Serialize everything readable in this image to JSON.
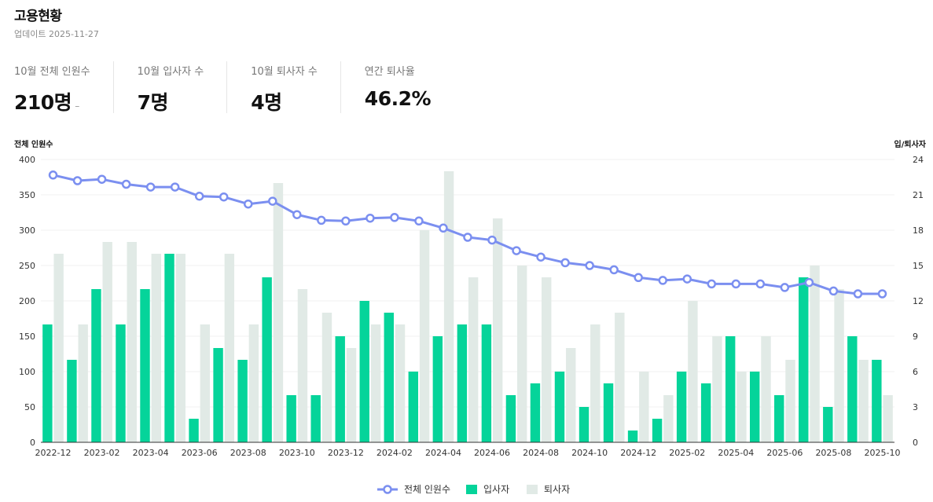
{
  "header": {
    "title": "고용현황",
    "updated": "업데이트 2025-11-27"
  },
  "kpis": [
    {
      "label": "10월 전체 인원수",
      "value": "210명",
      "delta": "–"
    },
    {
      "label": "10월 입사자 수",
      "value": "7명",
      "delta": ""
    },
    {
      "label": "10월 퇴사자 수",
      "value": "4명",
      "delta": ""
    },
    {
      "label": "연간 퇴사율",
      "value": "46.2%",
      "delta": ""
    }
  ],
  "colors": {
    "line": "#7b8ff0",
    "hires": "#05d49a",
    "leavers": "#e1eae6",
    "grid": "#f1f1f1"
  },
  "chart_data": {
    "type": "bar+line",
    "y_left_label": "전체 인원수",
    "y_right_label": "입/퇴사자",
    "y_left_range": [
      0,
      400
    ],
    "y_left_ticks": [
      0,
      50,
      100,
      150,
      200,
      250,
      300,
      350,
      400
    ],
    "y_right_range": [
      0,
      24
    ],
    "y_right_ticks": [
      0,
      3,
      6,
      9,
      12,
      15,
      18,
      21,
      24
    ],
    "categories": [
      "2022-12",
      "2023-01",
      "2023-02",
      "2023-03",
      "2023-04",
      "2023-05",
      "2023-06",
      "2023-07",
      "2023-08",
      "2023-09",
      "2023-10",
      "2023-11",
      "2023-12",
      "2024-01",
      "2024-02",
      "2024-03",
      "2024-04",
      "2024-05",
      "2024-06",
      "2024-07",
      "2024-08",
      "2024-09",
      "2024-10",
      "2024-11",
      "2024-12",
      "2025-01",
      "2025-02",
      "2025-03",
      "2025-04",
      "2025-05",
      "2025-06",
      "2025-07",
      "2025-08",
      "2025-09",
      "2025-10"
    ],
    "x_tick_labels": [
      "2022-12",
      "2023-02",
      "2023-04",
      "2023-06",
      "2023-08",
      "2023-10",
      "2023-12",
      "2024-02",
      "2024-04",
      "2024-06",
      "2024-08",
      "2024-10",
      "2024-12",
      "2025-02",
      "2025-04",
      "2025-06",
      "2025-08",
      "2025-10"
    ],
    "series": [
      {
        "name": "전체 인원수",
        "type": "line",
        "axis": "left",
        "values": [
          378,
          370,
          372,
          365,
          361,
          361,
          348,
          347,
          337,
          341,
          322,
          314,
          313,
          317,
          318,
          313,
          303,
          290,
          286,
          271,
          262,
          254,
          250,
          244,
          233,
          229,
          231,
          224,
          224,
          224,
          219,
          226,
          214,
          210,
          210
        ]
      },
      {
        "name": "입사자",
        "type": "bar",
        "axis": "right",
        "values": [
          10,
          7,
          13,
          10,
          13,
          16,
          2,
          8,
          7,
          14,
          4,
          4,
          9,
          12,
          11,
          6,
          9,
          10,
          10,
          4,
          5,
          6,
          3,
          5,
          1,
          2,
          6,
          5,
          9,
          6,
          4,
          14,
          3,
          9,
          7
        ]
      },
      {
        "name": "퇴사자",
        "type": "bar",
        "axis": "right",
        "values": [
          16,
          10,
          17,
          17,
          16,
          16,
          10,
          16,
          10,
          22,
          13,
          11,
          8,
          10,
          10,
          18,
          23,
          14,
          19,
          15,
          14,
          8,
          10,
          11,
          6,
          4,
          12,
          9,
          6,
          9,
          7,
          15,
          13,
          7,
          4
        ]
      }
    ],
    "legend": [
      "전체 인원수",
      "입사자",
      "퇴사자"
    ]
  }
}
